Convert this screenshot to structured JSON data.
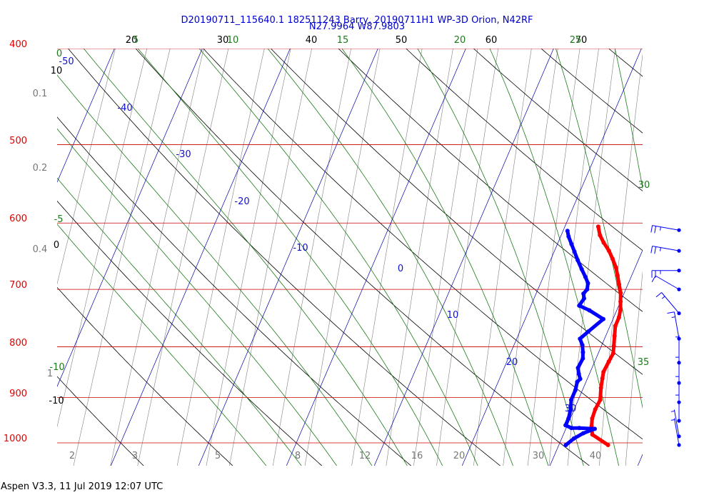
{
  "header": {
    "title_line1": "D20190711_115640.1 182511243 Barry, 20190711H1 WP-3D Orion, N42RF",
    "title_line2": "N27.9964 W87.9803"
  },
  "footer": {
    "text": "Aspen V3.3, 11 Jul 2019  12:07 UTC"
  },
  "chart_data": {
    "type": "skew-t",
    "pressure_axis": {
      "ticks": [
        "400",
        "500",
        "600",
        "700",
        "800",
        "900",
        "1000"
      ],
      "color": "#e00000"
    },
    "mixing_ratio_labels": [
      "0.1",
      "0.2",
      "0.4",
      "1",
      "2",
      "3",
      "5",
      "8",
      "12",
      "16",
      "20",
      "30",
      "40"
    ],
    "theta_labels": [
      "20",
      "30",
      "40",
      "50",
      "60",
      "70"
    ],
    "dry_adiabat_left_labels": [
      "10",
      "0",
      "-10"
    ],
    "theta_e_labels": [
      "0",
      "5",
      "10",
      "15",
      "20",
      "25",
      "30",
      "35",
      "-5",
      "-10"
    ],
    "isotherm_labels": [
      "-50",
      "-40",
      "-30",
      "-20",
      "-10",
      "0",
      "10",
      "20",
      "30"
    ],
    "colors": {
      "temperature": "#ff0000",
      "dewpoint": "#0000ff",
      "isobar": "#cc0000",
      "isotherm": "#0000aa",
      "moist_adiabat": "#1a7a1a",
      "dry_adiabat": "#000000",
      "mixing_ratio": "#808080"
    },
    "series": [
      {
        "name": "Temperature",
        "points": [
          [
            25.6,
            1005
          ],
          [
            23.3,
            981
          ],
          [
            22.8,
            962
          ],
          [
            22.5,
            945
          ],
          [
            22.4,
            925
          ],
          [
            22.5,
            905
          ],
          [
            22.0,
            880
          ],
          [
            21.7,
            861
          ],
          [
            21.5,
            848
          ],
          [
            21.6,
            828
          ],
          [
            21.7,
            812
          ],
          [
            21.4,
            798
          ],
          [
            21.0,
            780
          ],
          [
            20.6,
            762
          ],
          [
            20.6,
            747
          ],
          [
            20.4,
            734
          ],
          [
            20.0,
            720
          ],
          [
            19.6,
            706
          ],
          [
            19.0,
            692
          ],
          [
            18.4,
            678
          ],
          [
            17.8,
            665
          ],
          [
            17.0,
            652
          ],
          [
            16.2,
            640
          ],
          [
            15.2,
            628
          ],
          [
            14.4,
            617
          ],
          [
            13.8,
            605
          ]
        ]
      },
      {
        "name": "Dewpoint",
        "points": [
          [
            20.8,
            1005
          ],
          [
            21.4,
            990
          ],
          [
            22.2,
            978
          ],
          [
            23.3,
            968
          ],
          [
            21.5,
            966
          ],
          [
            20.6,
            966
          ],
          [
            19.8,
            960
          ],
          [
            19.8,
            945
          ],
          [
            19.6,
            925
          ],
          [
            19.2,
            905
          ],
          [
            19.2,
            885
          ],
          [
            19.0,
            868
          ],
          [
            19.2,
            862
          ],
          [
            18.8,
            852
          ],
          [
            18.4,
            840
          ],
          [
            18.5,
            822
          ],
          [
            18.2,
            810
          ],
          [
            17.8,
            797
          ],
          [
            17.2,
            785
          ],
          [
            17.8,
            772
          ],
          [
            18.9,
            750
          ],
          [
            16.9,
            735
          ],
          [
            15.5,
            727
          ],
          [
            15.7,
            715
          ],
          [
            15.4,
            707
          ],
          [
            15.6,
            700
          ],
          [
            15.4,
            690
          ],
          [
            14.8,
            680
          ],
          [
            14.0,
            668
          ],
          [
            13.1,
            654
          ],
          [
            12.3,
            641
          ],
          [
            11.6,
            630
          ],
          [
            10.9,
            619
          ],
          [
            10.5,
            611
          ]
        ]
      }
    ],
    "wind_barbs": {
      "pressures": [
        610,
        640,
        670,
        700,
        740,
        785,
        830,
        870,
        910,
        950,
        985,
        1005
      ],
      "speeds_kt": [
        25,
        25,
        25,
        10,
        15,
        15,
        5,
        5,
        5,
        5,
        5,
        5
      ],
      "directions_deg": [
        280,
        280,
        270,
        300,
        320,
        350,
        360,
        360,
        360,
        360,
        350,
        350
      ]
    }
  }
}
